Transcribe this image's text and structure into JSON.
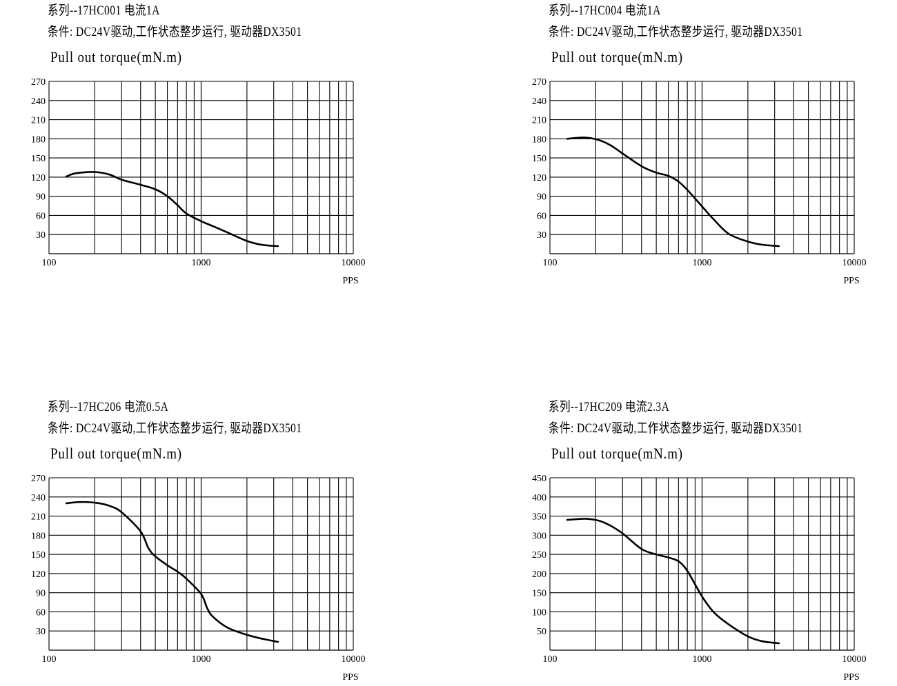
{
  "chart_data": [
    {
      "type": "line",
      "series_label": "系列--17HC001 电流1A",
      "condition": "条件: DC24V驱动,工作状态整步运行, 驱动器DX3501",
      "ylabel": "Pull out torque(mN.m)",
      "xlabel": "PPS",
      "xscale": "log",
      "xlim": [
        100,
        10000
      ],
      "ylim": [
        0,
        270
      ],
      "yticks": [
        30,
        60,
        90,
        120,
        150,
        180,
        210,
        240,
        270
      ],
      "xticks": [
        100,
        1000,
        10000
      ],
      "grid": true,
      "x": [
        130,
        150,
        200,
        250,
        300,
        400,
        500,
        600,
        700,
        800,
        1000,
        1200,
        1500,
        2000,
        2500,
        3200
      ],
      "y": [
        121,
        126,
        128,
        124,
        116,
        108,
        101,
        90,
        76,
        63,
        51,
        43,
        33,
        20,
        14,
        12
      ]
    },
    {
      "type": "line",
      "series_label": "系列--17HC004 电流1A",
      "condition": "条件: DC24V驱动,工作状态整步运行, 驱动器DX3501",
      "ylabel": "Pull out torque(mN.m)",
      "xlabel": "PPS",
      "xscale": "log",
      "xlim": [
        100,
        10000
      ],
      "ylim": [
        0,
        270
      ],
      "yticks": [
        30,
        60,
        90,
        120,
        150,
        180,
        210,
        240,
        270
      ],
      "xticks": [
        100,
        1000,
        10000
      ],
      "grid": true,
      "x": [
        130,
        170,
        210,
        250,
        300,
        400,
        500,
        600,
        700,
        800,
        1000,
        1200,
        1500,
        2000,
        2500,
        3200
      ],
      "y": [
        180,
        182,
        178,
        170,
        157,
        137,
        127,
        122,
        113,
        100,
        74,
        53,
        31,
        19,
        14,
        12
      ]
    },
    {
      "type": "line",
      "series_label": "系列--17HC206 电流0.5A",
      "condition": "条件: DC24V驱动,工作状态整步运行, 驱动器DX3501",
      "ylabel": "Pull out torque(mN.m)",
      "xlabel": "PPS",
      "xscale": "log",
      "xlim": [
        100,
        10000
      ],
      "ylim": [
        0,
        270
      ],
      "yticks": [
        30,
        60,
        90,
        120,
        150,
        180,
        210,
        240,
        270
      ],
      "xticks": [
        100,
        1000,
        10000
      ],
      "grid": true,
      "x": [
        130,
        160,
        200,
        250,
        300,
        400,
        450,
        500,
        600,
        700,
        800,
        1000,
        1100,
        1200,
        1500,
        2000,
        2500,
        3200
      ],
      "y": [
        230,
        232,
        231,
        226,
        216,
        186,
        160,
        147,
        133,
        123,
        112,
        88,
        65,
        52,
        35,
        24,
        18,
        13
      ]
    },
    {
      "type": "line",
      "series_label": "系列--17HC209 电流2.3A",
      "condition": "条件: DC24V驱动,工作状态整步运行, 驱动器DX3501",
      "ylabel": "Pull out torque(mN.m)",
      "xlabel": "PPS",
      "xscale": "log",
      "xlim": [
        100,
        10000
      ],
      "ylim": [
        0,
        450
      ],
      "yticks": [
        50,
        100,
        150,
        200,
        250,
        300,
        350,
        400,
        450
      ],
      "xticks": [
        100,
        1000,
        10000
      ],
      "grid": true,
      "x": [
        130,
        170,
        210,
        250,
        300,
        400,
        500,
        600,
        700,
        800,
        1000,
        1200,
        1500,
        2000,
        2500,
        3200
      ],
      "y": [
        340,
        343,
        338,
        325,
        305,
        264,
        250,
        242,
        232,
        207,
        140,
        98,
        67,
        36,
        23,
        18
      ]
    }
  ]
}
